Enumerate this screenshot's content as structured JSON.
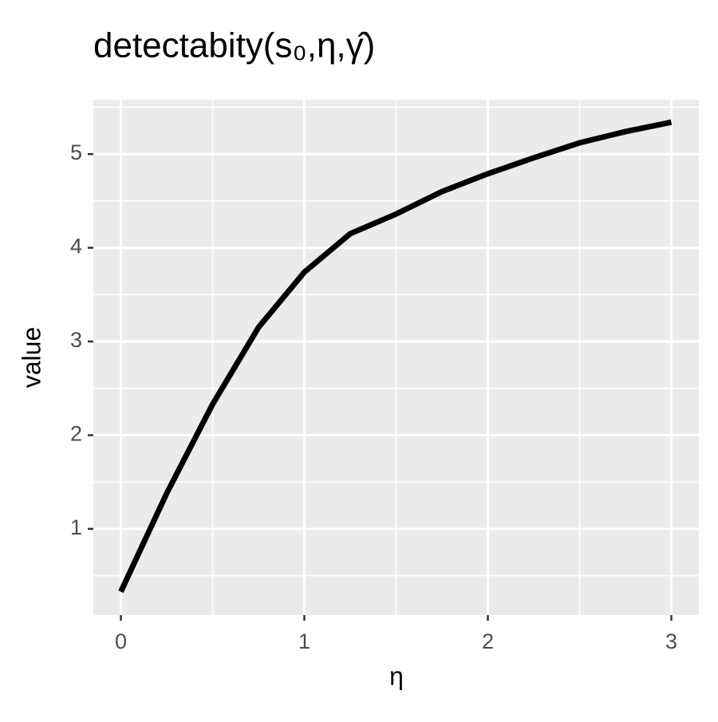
{
  "chart_data": {
    "type": "line",
    "title": "detectabity(s₀,η,γ̂)",
    "x_label": "η",
    "y_label": "value",
    "x": [
      0,
      0.25,
      0.5,
      0.75,
      1.0,
      1.25,
      1.5,
      1.75,
      2.0,
      2.25,
      2.5,
      2.75,
      3.0
    ],
    "series": [
      {
        "color": "#000000",
        "values": [
          0.33,
          1.38,
          2.33,
          3.15,
          3.74,
          4.15,
          4.36,
          4.6,
          4.79,
          4.96,
          5.12,
          5.24,
          5.34
        ]
      }
    ],
    "xlim": [
      -0.15,
      3.15
    ],
    "ylim": [
      0.08,
      5.58
    ],
    "xticks": [
      0,
      1,
      2,
      3
    ],
    "yticks": [
      1,
      2,
      3,
      4,
      5
    ],
    "xminor": [
      0.5,
      1.5,
      2.5
    ],
    "yminor": [
      0.5,
      1.5,
      2.5,
      3.5,
      4.5,
      5.5
    ],
    "grid": true
  }
}
